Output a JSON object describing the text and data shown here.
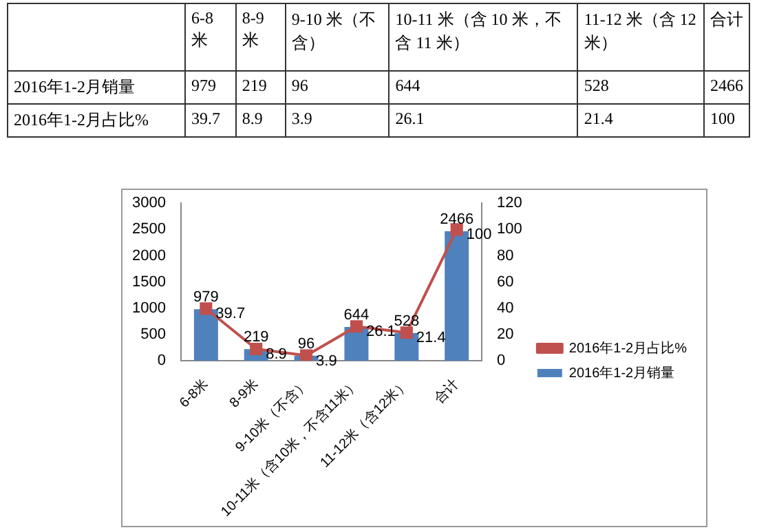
{
  "chart_data": {
    "type": "bar",
    "categories": [
      "6-8米",
      "8-9米",
      "9-10米（不含）",
      "10-11米（含10米，不含11米）",
      "11-12米（含12米）",
      "合计"
    ],
    "series": [
      {
        "name": "2016年1-2月销量",
        "color": "#4f81bd",
        "values": [
          979,
          219,
          96,
          644,
          528,
          2466
        ]
      },
      {
        "name": "2016年1-2月占比%",
        "type": "line",
        "axis": "y2",
        "color": "#c0504d",
        "marker": "square",
        "values": [
          39.7,
          8.9,
          3.9,
          26.1,
          21.4,
          100
        ]
      }
    ],
    "annotations": [
      "6-8 米",
      "8-9 米",
      "9-10 米（不含）",
      "10-11 米（含 10 米，不含 11 米）",
      "11-12 米（含 12 米）",
      "合计",
      "979",
      "219",
      "96",
      "644",
      "528",
      "2466",
      "39.7",
      "8.9",
      "3.9",
      "26.1",
      "21.4",
      "100"
    ],
    "ylim": [
      0,
      3000
    ],
    "yticks": [
      0,
      500,
      1000,
      1500,
      2000,
      2500,
      3000
    ],
    "y2lim": [
      0,
      120
    ],
    "y2ticks": [
      0,
      20,
      40,
      60,
      80,
      100,
      120
    ],
    "grid": false,
    "legend": "right",
    "data_labels": true
  }
}
